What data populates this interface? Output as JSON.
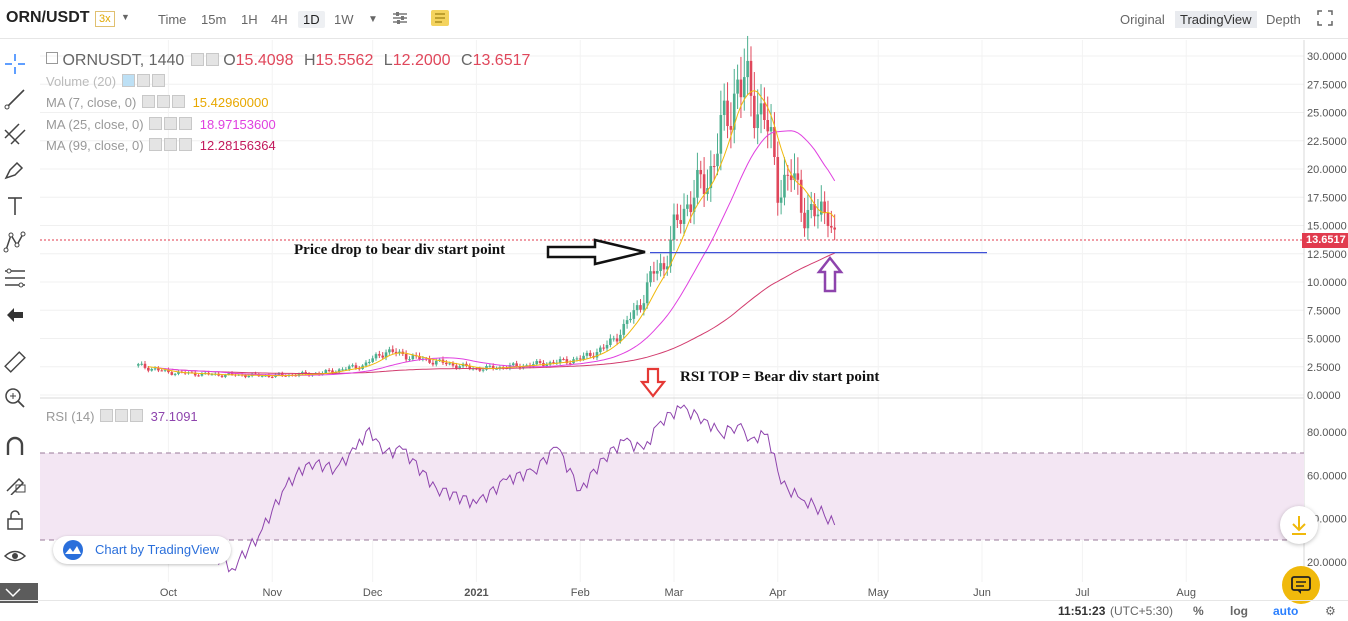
{
  "header": {
    "symbol": "ORN/USDT",
    "leverage": "3x",
    "timeframes": [
      "Time",
      "15m",
      "1H",
      "4H",
      "1D",
      "1W"
    ],
    "active_timeframe": "1D",
    "views": [
      "Original",
      "TradingView",
      "Depth"
    ],
    "active_view": "TradingView"
  },
  "legend": {
    "main_title": "ORNUSDT, 1440",
    "o_label": "O",
    "o_value": "15.4098",
    "h_label": "H",
    "h_value": "15.5562",
    "l_label": "L",
    "l_value": "12.2000",
    "c_label": "C",
    "c_value": "13.6517",
    "volume": "Volume (20)",
    "ma7_label": "MA (7, close, 0)",
    "ma7_value": "15.42960000",
    "ma25_label": "MA (25, close, 0)",
    "ma25_value": "18.97153600",
    "ma99_label": "MA (99, close, 0)",
    "ma99_value": "12.28156364",
    "rsi_label": "RSI (14)",
    "rsi_value": "37.1091"
  },
  "annotations": {
    "price_drop": "Price drop to bear div start point",
    "rsi_top": "RSI TOP = Bear div start point"
  },
  "price_tag": "13.6517",
  "branding": "Chart by TradingView",
  "bottom_bar": {
    "time": "11:51:23",
    "tz": "(UTC+5:30)",
    "percent": "%",
    "log": "log",
    "auto": "auto"
  },
  "colors": {
    "up": "#4caf8f",
    "down": "#e0475b",
    "ma7": "#f0b90b",
    "ma25": "#e040e0",
    "ma99": "#d23c6e",
    "rsi": "#8e44ad",
    "support_line": "#3f51d8",
    "annotation_arrow_red": "#e53935",
    "annotation_arrow_purple": "#8e44ad"
  },
  "chart_data": [
    {
      "type": "candlestick",
      "title": "ORNUSDT, 1440",
      "y_ticks": [
        "30.0000",
        "27.5000",
        "25.0000",
        "22.5000",
        "20.0000",
        "17.5000",
        "15.0000",
        "12.5000",
        "10.0000",
        "7.5000",
        "5.0000",
        "2.5000",
        "0.0000"
      ],
      "x_ticks": [
        "Oct",
        "Nov",
        "Dec",
        "2021",
        "Feb",
        "Mar",
        "Apr",
        "May",
        "Jun",
        "Jul",
        "Aug"
      ],
      "ylim": [
        0,
        30
      ],
      "support_level": 12.6,
      "last_price": 13.6517,
      "close_series": {
        "dates": [
          "2020-09-22",
          "2020-10-01",
          "2020-10-15",
          "2020-11-01",
          "2020-11-15",
          "2020-11-28",
          "2020-12-05",
          "2020-12-15",
          "2021-01-01",
          "2021-01-15",
          "2021-01-25",
          "2021-02-01",
          "2021-02-08",
          "2021-02-14",
          "2021-02-19",
          "2021-02-23",
          "2021-02-26",
          "2021-03-01",
          "2021-03-06",
          "2021-03-11",
          "2021-03-14",
          "2021-03-18",
          "2021-03-20",
          "2021-03-24",
          "2021-03-28",
          "2021-04-01",
          "2021-04-05",
          "2021-04-09",
          "2021-04-13",
          "2021-04-16",
          "2021-04-18"
        ],
        "values": [
          2.6,
          2.0,
          1.8,
          1.7,
          1.9,
          2.6,
          3.9,
          3.2,
          2.3,
          2.6,
          2.9,
          3.2,
          4.1,
          5.9,
          8.2,
          10.8,
          11.6,
          14.5,
          17.6,
          18.9,
          22.4,
          25.2,
          28.1,
          26.3,
          24.9,
          18.6,
          19.3,
          16.4,
          15.7,
          16.8,
          13.65
        ]
      },
      "ma7_last": 15.4296,
      "ma25_last": 18.971536,
      "ma99_last": 12.28156364
    },
    {
      "type": "line",
      "title": "RSI (14)",
      "y_ticks": [
        "80.0000",
        "60.0000",
        "40.0000",
        "20.0000"
      ],
      "bands": [
        30,
        70
      ],
      "dates": [
        "2020-10-14",
        "2020-10-20",
        "2020-10-28",
        "2020-11-05",
        "2020-11-12",
        "2020-11-20",
        "2020-11-26",
        "2020-11-30",
        "2020-12-04",
        "2020-12-10",
        "2020-12-20",
        "2021-01-01",
        "2021-01-10",
        "2021-01-18",
        "2021-01-25",
        "2021-02-01",
        "2021-02-08",
        "2021-02-14",
        "2021-02-20",
        "2021-02-25",
        "2021-03-03",
        "2021-03-10",
        "2021-03-15",
        "2021-03-20",
        "2021-03-24",
        "2021-03-29",
        "2021-04-02",
        "2021-04-08",
        "2021-04-12",
        "2021-04-18"
      ],
      "values": [
        24,
        17,
        32,
        55,
        66,
        63,
        72,
        82,
        70,
        72,
        54,
        47,
        58,
        62,
        73,
        53,
        68,
        76,
        72,
        85,
        91,
        86,
        79,
        83,
        77,
        79,
        56,
        49,
        46,
        37.1
      ]
    }
  ]
}
